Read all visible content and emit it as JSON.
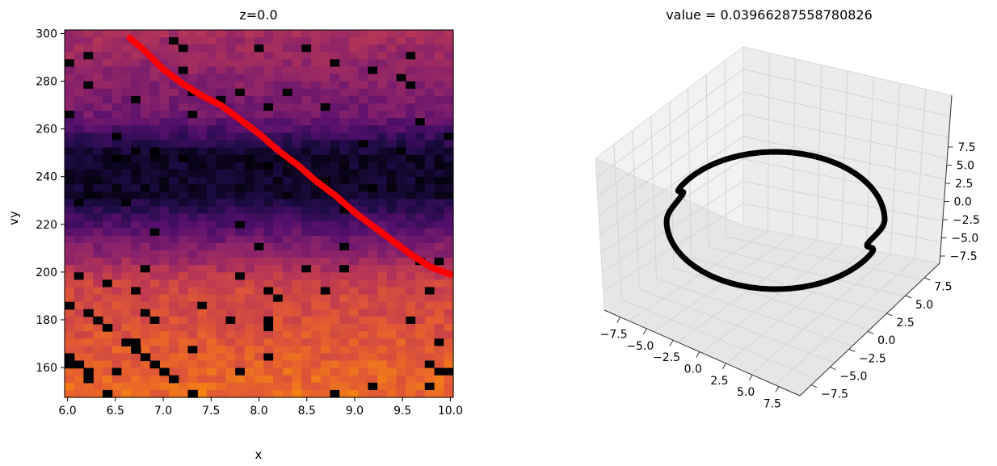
{
  "chart_data": [
    {
      "type": "heatmap",
      "title": "z=0.0",
      "xlabel": "x",
      "ylabel": "vy",
      "xlim": [
        5.97,
        10.03
      ],
      "ylim": [
        147.5,
        301.5
      ],
      "xticks": [
        6.0,
        6.5,
        7.0,
        7.5,
        8.0,
        8.5,
        9.0,
        9.5,
        10.0
      ],
      "xtick_labels": [
        "6.0",
        "6.5",
        "7.0",
        "7.5",
        "8.0",
        "8.5",
        "9.0",
        "9.5",
        "10.0"
      ],
      "yticks": [
        160,
        180,
        200,
        220,
        240,
        260,
        280,
        300
      ],
      "ytick_labels": [
        "160",
        "180",
        "200",
        "220",
        "240",
        "260",
        "280",
        "300"
      ],
      "colormap": "inferno",
      "grid": false,
      "heatmap": {
        "cols": 41,
        "rows": 50,
        "description_of_values": "intensity high near vy=160 (orange), low near vy=240 (black band), medium at vy=280-300 (magenta)"
      },
      "overlay_curve": {
        "color": "#ff0000",
        "x": [
          6.65,
          6.8,
          7.0,
          7.2,
          7.4,
          7.6,
          7.8,
          8.0,
          8.2,
          8.4,
          8.6,
          8.8,
          9.0,
          9.2,
          9.4,
          9.6,
          9.8,
          10.0
        ],
        "y": [
          298,
          293,
          285,
          279,
          274,
          270,
          264,
          258,
          251,
          245,
          238,
          232,
          225,
          219,
          213,
          207,
          202,
          199
        ]
      }
    },
    {
      "type": "scatter",
      "projection": "3d",
      "title": "value = 0.03966287558780826",
      "marker_color": "#000000",
      "xlim": [
        -9,
        9
      ],
      "ylim": [
        -9,
        9
      ],
      "zlim": [
        -9,
        9
      ],
      "xtick_labels": [
        "−7.5",
        "−5.0",
        "−2.5",
        "0.0",
        "2.5",
        "5.0",
        "7.5"
      ],
      "ytick_labels": [
        "−7.5",
        "−5.0",
        "−2.5",
        "0.0",
        "2.5",
        "5.0",
        "7.5"
      ],
      "ztick_labels": [
        "−7.5",
        "−5.0",
        "−2.5",
        "0.0",
        "2.5",
        "5.0",
        "7.5"
      ],
      "curve": "closed loop of radius about 8 lying near z=0, with two small notches"
    }
  ]
}
